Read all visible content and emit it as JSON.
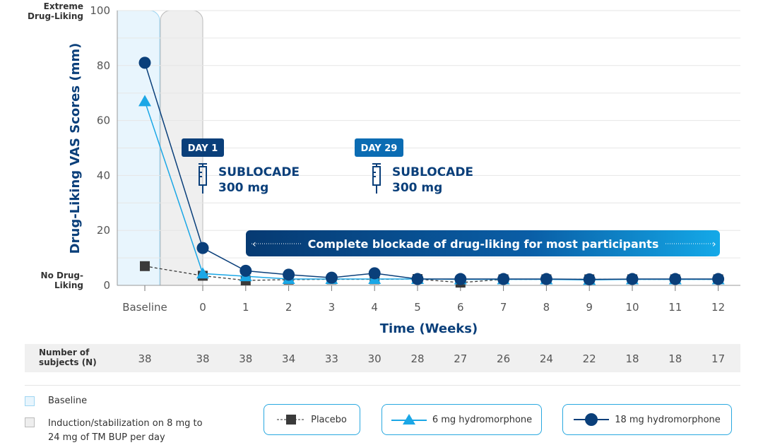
{
  "chart_data": {
    "type": "line",
    "xlabel": "Time (Weeks)",
    "ylabel": "Drug-Liking VAS Scores (mm)",
    "ylim": [
      0,
      100
    ],
    "yticks": [
      0,
      20,
      40,
      60,
      80,
      100
    ],
    "y_top_label": "Extreme Drug-Liking",
    "y_bottom_label": "No Drug-Liking",
    "categories": [
      "Baseline",
      "0",
      "1",
      "2",
      "3",
      "4",
      "5",
      "6",
      "7",
      "8",
      "9",
      "10",
      "11",
      "12"
    ],
    "grid": true,
    "series": [
      {
        "name": "Placebo",
        "color": "#3a3a3a",
        "marker": "square",
        "dashed": true,
        "values": [
          7,
          3.5,
          1.8,
          2.1,
          2.2,
          2.2,
          2.3,
          1,
          2.2,
          2.2,
          2.2,
          2.2,
          2.2,
          2.2
        ]
      },
      {
        "name": "6 mg hydromorphone",
        "color": "#1ba7e6",
        "marker": "triangle",
        "values": [
          67,
          4.3,
          3.3,
          2.3,
          2.3,
          2.3,
          2.3,
          2.2,
          2.2,
          2.2,
          2,
          2.2,
          2.2,
          2.2
        ]
      },
      {
        "name": "18 mg hydromorphone",
        "color": "#0a3f7a",
        "marker": "circle",
        "values": [
          81,
          13.6,
          5.3,
          3.9,
          2.8,
          4.4,
          2.3,
          2.3,
          2.3,
          2.3,
          2.2,
          2.3,
          2.3,
          2.3
        ]
      }
    ],
    "annotations": [
      {
        "badge": "DAY 1",
        "drug": "SUBLOCADE",
        "dose": "300 mg"
      },
      {
        "badge": "DAY 29",
        "drug": "SUBLOCADE",
        "dose": "300 mg"
      }
    ],
    "banner": "Complete blockade of drug-liking for most participants",
    "n_label": "Number of subjects (N)",
    "n_values": [
      38,
      38,
      38,
      34,
      33,
      30,
      28,
      27,
      26,
      24,
      22,
      18,
      18,
      17
    ]
  },
  "legend": {
    "shading": [
      {
        "label": "Baseline",
        "color": "#e8f5fd"
      },
      {
        "label": "Induction/stabilization on 8 mg to 24 mg of TM BUP per day",
        "color": "#eeeeee"
      }
    ]
  }
}
